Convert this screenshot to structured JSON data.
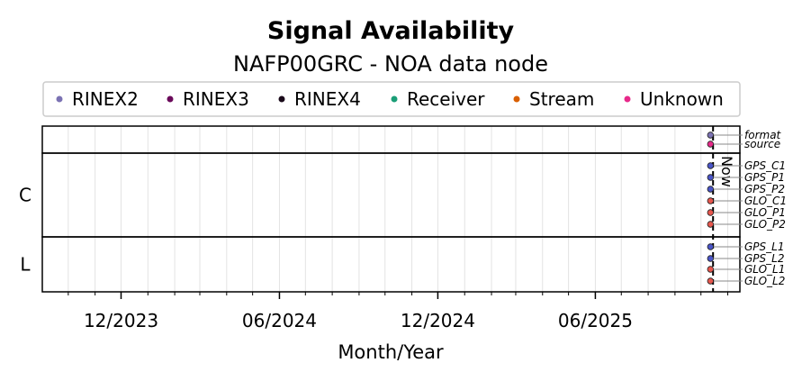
{
  "chart_data": {
    "type": "scatter",
    "title": "Signal Availability",
    "subtitle": "NAFP00GRC - NOA data node",
    "xlabel": "Month/Year",
    "x_ticks": [
      "12/2023",
      "06/2024",
      "12/2024",
      "06/2025"
    ],
    "xlim": [
      "2023-09-01",
      "2025-11-15"
    ],
    "now_date": "2025-10-15",
    "now_label": "Now",
    "legend": {
      "placement": "top",
      "entries": [
        {
          "label": "RINEX2",
          "color": "#7b72b3"
        },
        {
          "label": "RINEX3",
          "color": "#6a0a5a"
        },
        {
          "label": "RINEX4",
          "color": "#1a0a1a"
        },
        {
          "label": "Receiver",
          "color": "#1b9e77"
        },
        {
          "label": "Stream",
          "color": "#d95f02"
        },
        {
          "label": "Unknown",
          "color": "#e7298a"
        }
      ]
    },
    "groups": [
      {
        "label": "",
        "rows": [
          {
            "label": "format",
            "color": "#7b72b3"
          },
          {
            "label": "source",
            "color": "#e7298a"
          }
        ]
      },
      {
        "label": "C",
        "rows": [
          {
            "label": "GPS_C1",
            "color": "#4a55c8"
          },
          {
            "label": "GPS_P1",
            "color": "#4a55c8"
          },
          {
            "label": "GPS_P2",
            "color": "#4a55c8"
          },
          {
            "label": "GLO_C1",
            "color": "#e8574e"
          },
          {
            "label": "GLO_P1",
            "color": "#e8574e"
          },
          {
            "label": "GLO_P2",
            "color": "#e8574e"
          }
        ]
      },
      {
        "label": "L",
        "rows": [
          {
            "label": "GPS_L1",
            "color": "#4a55c8"
          },
          {
            "label": "GPS_L2",
            "color": "#4a55c8"
          },
          {
            "label": "GLO_L1",
            "color": "#e8574e"
          },
          {
            "label": "GLO_L2",
            "color": "#e8574e"
          }
        ]
      }
    ],
    "data_points_date": "2025-10-12",
    "grid": true
  }
}
